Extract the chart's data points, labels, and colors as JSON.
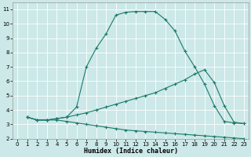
{
  "xlabel": "Humidex (Indice chaleur)",
  "bg_color": "#cce8e8",
  "grid_color": "#ffffff",
  "line_color": "#1a7a6a",
  "xlim": [
    -0.5,
    23.5
  ],
  "ylim": [
    2,
    11.5
  ],
  "xticks": [
    0,
    1,
    2,
    3,
    4,
    5,
    6,
    7,
    8,
    9,
    10,
    11,
    12,
    13,
    14,
    15,
    16,
    17,
    18,
    19,
    20,
    21,
    22,
    23
  ],
  "yticks": [
    2,
    3,
    4,
    5,
    6,
    7,
    8,
    9,
    10,
    11
  ],
  "line1_x": [
    1,
    2,
    3,
    4,
    5,
    6,
    7,
    8,
    9,
    10,
    11,
    12,
    13,
    14,
    15,
    16,
    17,
    18,
    19,
    20,
    21,
    22,
    23
  ],
  "line1_y": [
    3.5,
    3.3,
    3.3,
    3.4,
    3.5,
    4.2,
    7.0,
    8.3,
    9.3,
    10.6,
    10.8,
    10.85,
    10.85,
    10.85,
    10.3,
    9.5,
    8.1,
    7.0,
    5.8,
    4.3,
    3.2,
    3.1,
    3.05
  ],
  "line2_x": [
    1,
    2,
    3,
    4,
    5,
    6,
    7,
    8,
    9,
    10,
    11,
    12,
    13,
    14,
    15,
    16,
    17,
    18,
    19,
    20,
    21,
    22,
    23
  ],
  "line2_y": [
    3.5,
    3.3,
    3.3,
    3.4,
    3.5,
    3.65,
    3.8,
    4.0,
    4.2,
    4.4,
    4.6,
    4.8,
    5.0,
    5.2,
    5.5,
    5.8,
    6.1,
    6.5,
    6.8,
    5.9,
    4.3,
    3.15,
    3.05
  ],
  "line3_x": [
    1,
    2,
    3,
    4,
    5,
    6,
    7,
    8,
    9,
    10,
    11,
    12,
    13,
    14,
    15,
    16,
    17,
    18,
    19,
    20,
    21,
    22,
    23
  ],
  "line3_y": [
    3.5,
    3.3,
    3.3,
    3.3,
    3.2,
    3.1,
    3.0,
    2.9,
    2.8,
    2.7,
    2.6,
    2.55,
    2.5,
    2.45,
    2.4,
    2.35,
    2.3,
    2.25,
    2.2,
    2.15,
    2.1,
    2.05,
    2.0
  ]
}
